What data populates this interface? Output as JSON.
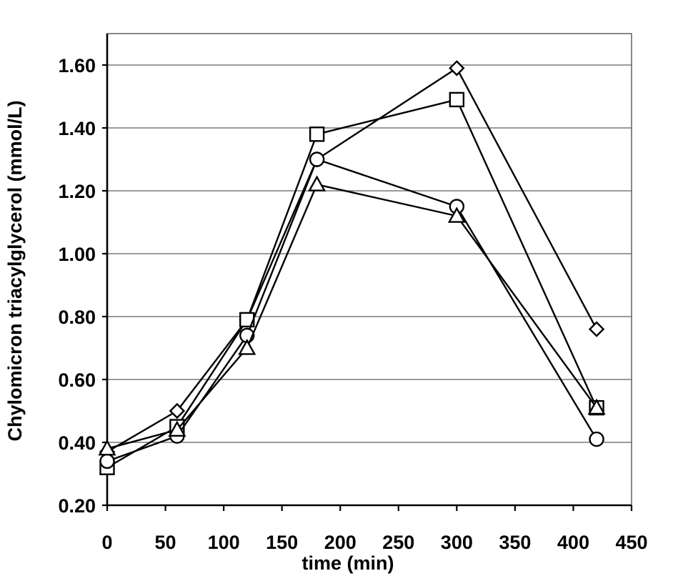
{
  "chart_data": {
    "type": "line",
    "title": "",
    "xlabel": "time (min)",
    "ylabel": "Chylomicron triacylglycerol (mmol/L)",
    "xlim": [
      0,
      450
    ],
    "ylim": [
      0.2,
      1.7
    ],
    "x_ticks": [
      0,
      50,
      100,
      150,
      200,
      250,
      300,
      350,
      400,
      450
    ],
    "x_tick_labels": [
      "0",
      "50",
      "100",
      "150",
      "200",
      "250",
      "300",
      "350",
      "400",
      "450"
    ],
    "y_ticks": [
      0.2,
      0.4,
      0.6,
      0.8,
      1.0,
      1.2,
      1.4,
      1.6
    ],
    "y_tick_labels": [
      "0.20",
      "0.40",
      "0.60",
      "0.80",
      "1.00",
      "1.20",
      "1.40",
      "1.60"
    ],
    "grid": "horizontal",
    "legend": "none",
    "x": [
      0,
      60,
      120,
      180,
      300,
      420
    ],
    "series": [
      {
        "marker": "diamond",
        "values": [
          0.37,
          0.5,
          0.79,
          1.3,
          1.59,
          0.76
        ]
      },
      {
        "marker": "square",
        "values": [
          0.32,
          0.45,
          0.79,
          1.38,
          1.49,
          0.51
        ]
      },
      {
        "marker": "circle",
        "values": [
          0.34,
          0.42,
          0.74,
          1.3,
          1.15,
          0.41
        ]
      },
      {
        "marker": "triangle",
        "values": [
          0.38,
          0.44,
          0.7,
          1.22,
          1.12,
          0.51
        ]
      }
    ],
    "colors": {
      "line": "#000000",
      "marker_fill": "#ffffff",
      "grid": "#7a7a7a"
    }
  }
}
